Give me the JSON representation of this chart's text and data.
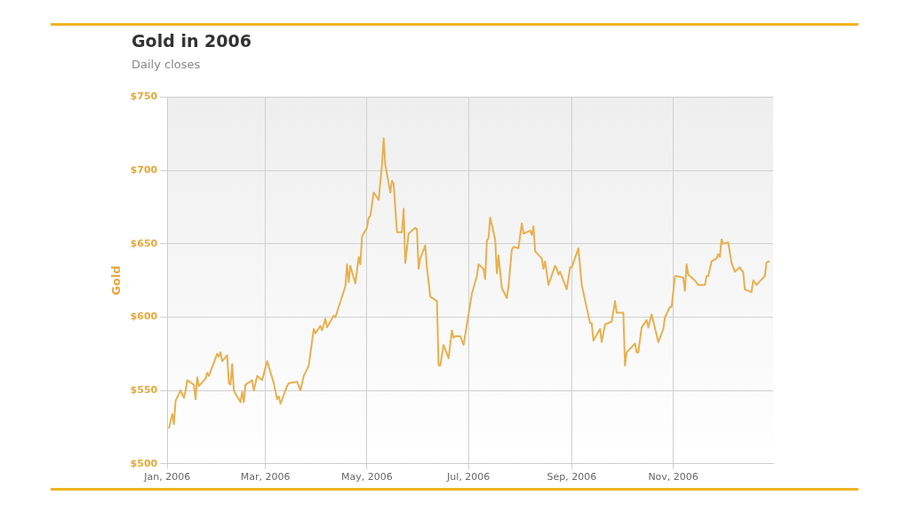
{
  "chart_data": {
    "type": "line",
    "title": "Gold in 2006",
    "subtitle": "Daily closes",
    "ylabel": "Gold",
    "xlim": [
      "2006-01-01",
      "2006-12-31"
    ],
    "xticks": [
      {
        "value": "2006-01-01",
        "label": "Jan, 2006"
      },
      {
        "value": "2006-03-01",
        "label": "Mar, 2006"
      },
      {
        "value": "2006-05-01",
        "label": "May, 2006"
      },
      {
        "value": "2006-07-01",
        "label": "Jul, 2006"
      },
      {
        "value": "2006-09-01",
        "label": "Sep, 2006"
      },
      {
        "value": "2006-11-01",
        "label": "Nov, 2006"
      }
    ],
    "ylim": [
      500,
      750
    ],
    "yticks": [
      {
        "value": 500,
        "label": "$500"
      },
      {
        "value": 550,
        "label": "$550"
      },
      {
        "value": 600,
        "label": "$600"
      },
      {
        "value": 650,
        "label": "$650"
      },
      {
        "value": 700,
        "label": "$700"
      },
      {
        "value": 750,
        "label": "$750"
      }
    ],
    "grid": true,
    "x": [
      "2006-01-02",
      "2006-01-04",
      "2006-01-05",
      "2006-01-06",
      "2006-01-09",
      "2006-01-11",
      "2006-01-12",
      "2006-01-13",
      "2006-01-17",
      "2006-01-18",
      "2006-01-19",
      "2006-01-20",
      "2006-01-24",
      "2006-01-25",
      "2006-01-26",
      "2006-01-31",
      "2006-02-01",
      "2006-02-02",
      "2006-02-03",
      "2006-02-06",
      "2006-02-07",
      "2006-02-08",
      "2006-02-09",
      "2006-02-10",
      "2006-02-14",
      "2006-02-15",
      "2006-02-16",
      "2006-02-17",
      "2006-02-21",
      "2006-02-22",
      "2006-02-24",
      "2006-02-27",
      "2006-03-02",
      "2006-03-06",
      "2006-03-08",
      "2006-03-09",
      "2006-03-10",
      "2006-03-14",
      "2006-03-15",
      "2006-03-20",
      "2006-03-22",
      "2006-03-24",
      "2006-03-27",
      "2006-03-30",
      "2006-03-31",
      "2006-04-03",
      "2006-04-04",
      "2006-04-06",
      "2006-04-07",
      "2006-04-11",
      "2006-04-12",
      "2006-04-18",
      "2006-04-19",
      "2006-04-20",
      "2006-04-21",
      "2006-04-24",
      "2006-04-26",
      "2006-04-27",
      "2006-04-28",
      "2006-05-01",
      "2006-05-02",
      "2006-05-03",
      "2006-05-05",
      "2006-05-08",
      "2006-05-10",
      "2006-05-11",
      "2006-05-12",
      "2006-05-15",
      "2006-05-16",
      "2006-05-17",
      "2006-05-19",
      "2006-05-22",
      "2006-05-23",
      "2006-05-24",
      "2006-05-26",
      "2006-05-30",
      "2006-05-31",
      "2006-06-01",
      "2006-06-02",
      "2006-06-05",
      "2006-06-06",
      "2006-06-08",
      "2006-06-12",
      "2006-06-13",
      "2006-06-14",
      "2006-06-16",
      "2006-06-19",
      "2006-06-21",
      "2006-06-22",
      "2006-06-23",
      "2006-06-26",
      "2006-06-28",
      "2006-07-03",
      "2006-07-06",
      "2006-07-07",
      "2006-07-10",
      "2006-07-11",
      "2006-07-12",
      "2006-07-13",
      "2006-07-14",
      "2006-07-17",
      "2006-07-18",
      "2006-07-19",
      "2006-07-21",
      "2006-07-24",
      "2006-07-25",
      "2006-07-27",
      "2006-07-28",
      "2006-07-31",
      "2006-08-02",
      "2006-08-03",
      "2006-08-07",
      "2006-08-08",
      "2006-08-09",
      "2006-08-10",
      "2006-08-14",
      "2006-08-15",
      "2006-08-16",
      "2006-08-18",
      "2006-08-22",
      "2006-08-23",
      "2006-08-24",
      "2006-08-25",
      "2006-08-29",
      "2006-08-31",
      "2006-09-01",
      "2006-09-05",
      "2006-09-07",
      "2006-09-12",
      "2006-09-13",
      "2006-09-14",
      "2006-09-18",
      "2006-09-19",
      "2006-09-21",
      "2006-09-25",
      "2006-09-27",
      "2006-09-28",
      "2006-10-02",
      "2006-10-03",
      "2006-10-04",
      "2006-10-09",
      "2006-10-10",
      "2006-10-11",
      "2006-10-13",
      "2006-10-16",
      "2006-10-17",
      "2006-10-19",
      "2006-10-23",
      "2006-10-26",
      "2006-10-27",
      "2006-10-30",
      "2006-10-31",
      "2006-11-02",
      "2006-11-03",
      "2006-11-07",
      "2006-11-08",
      "2006-11-09",
      "2006-11-10",
      "2006-11-14",
      "2006-11-16",
      "2006-11-20",
      "2006-11-21",
      "2006-11-22",
      "2006-11-24",
      "2006-11-27",
      "2006-11-28",
      "2006-11-29",
      "2006-11-30",
      "2006-12-01",
      "2006-12-04",
      "2006-12-06",
      "2006-12-08",
      "2006-12-11",
      "2006-12-12",
      "2006-12-13",
      "2006-12-14",
      "2006-12-18",
      "2006-12-19",
      "2006-12-21",
      "2006-12-26",
      "2006-12-27",
      "2006-12-28",
      "2006-12-29"
    ],
    "series": [
      {
        "color": "#e8b04f",
        "values": [
          524,
          534,
          527,
          543,
          550,
          545,
          550,
          557,
          554,
          544,
          559,
          553,
          558,
          562,
          560,
          575,
          573,
          576,
          570,
          574,
          555,
          554,
          568,
          550,
          542,
          549,
          542,
          554,
          557,
          550,
          560,
          557,
          570,
          555,
          544,
          546,
          541,
          553,
          555,
          556,
          550,
          560,
          567,
          592,
          589,
          594,
          591,
          599,
          593,
          601,
          600,
          621,
          636,
          624,
          635,
          623,
          641,
          636,
          655,
          661,
          668,
          669,
          685,
          680,
          704,
          722,
          704,
          685,
          693,
          691,
          658,
          658,
          674,
          637,
          657,
          661,
          660,
          633,
          640,
          649,
          634,
          614,
          611,
          567,
          567,
          581,
          572,
          591,
          586,
          587,
          587,
          581,
          616,
          628,
          636,
          633,
          626,
          652,
          654,
          668,
          653,
          630,
          642,
          620,
          613,
          621,
          646,
          648,
          647,
          664,
          657,
          659,
          656,
          662,
          645,
          640,
          633,
          638,
          622,
          635,
          633,
          629,
          631,
          619,
          634,
          634,
          647,
          622,
          596,
          596,
          584,
          592,
          583,
          595,
          597,
          611,
          603,
          603,
          567,
          576,
          582,
          576,
          576,
          593,
          598,
          593,
          602,
          583,
          592,
          600,
          607,
          607,
          628,
          628,
          627,
          618,
          636,
          629,
          625,
          622,
          622,
          628,
          628,
          638,
          640,
          643,
          641,
          653,
          650,
          651,
          637,
          631,
          634,
          632,
          631,
          619,
          617,
          625,
          622,
          628,
          637,
          638,
          638
        ]
      }
    ]
  }
}
